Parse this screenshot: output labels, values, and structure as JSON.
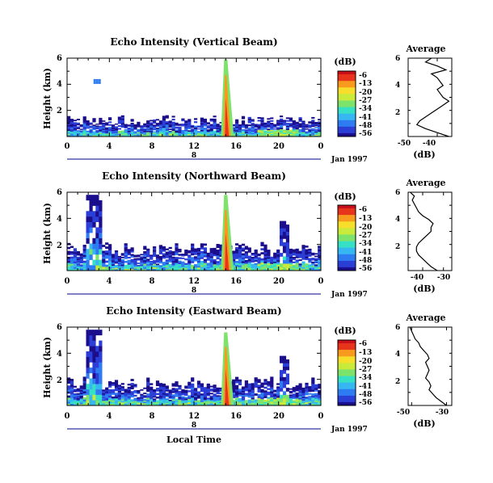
{
  "colors": {
    "colorbar": [
      "#1a0e8c",
      "#2b3ed6",
      "#2f7cf2",
      "#37b7f2",
      "#36e0c4",
      "#7de36a",
      "#c9ea3b",
      "#f7de2a",
      "#f79a1e",
      "#e9351c",
      "#c8101a"
    ],
    "plume": "#e9351c",
    "line": "#000000"
  },
  "chart_data": [
    {
      "type": "heatmap",
      "title": "Echo Intensity (Vertical Beam)",
      "ylabel": "Height (km)",
      "xlabel": "",
      "x_ticks": [
        "0",
        "4",
        "8",
        "12",
        "16",
        "20",
        "0"
      ],
      "y_ticks": [
        "6",
        "4",
        "2"
      ],
      "xlim": [
        0,
        24
      ],
      "ylim": [
        0,
        6
      ],
      "date_marker": "8",
      "date_label": "Jan 1997",
      "colorbar": {
        "label": "(dB)",
        "ticks": [
          "-6",
          "-13",
          "-20",
          "-27",
          "-34",
          "-41",
          "-48",
          "-56"
        ]
      },
      "plume": {
        "time": 15,
        "top_km": 5.9
      },
      "echo_layer_top_km": 1.5,
      "profile": {
        "title": "Average",
        "xlabel": "(dB)",
        "x_ticks": [
          "-50",
          "-40"
        ],
        "y_ticks": [
          "6",
          "4",
          "2"
        ],
        "xlim": [
          -50,
          -35
        ],
        "ylim": [
          0,
          6
        ],
        "height_km": [
          0.0,
          0.3,
          0.6,
          0.9,
          1.2,
          1.5,
          1.8,
          2.1,
          2.4,
          2.7,
          3.0,
          3.3,
          3.6,
          3.9,
          4.2,
          4.5,
          4.8,
          5.1,
          5.4,
          5.7,
          6.0
        ],
        "db": [
          -36,
          -40,
          -44,
          -47,
          -46,
          -44,
          -42,
          -40,
          -38,
          -36,
          -38,
          -39,
          -40,
          -38,
          -39,
          -40,
          -42,
          -37,
          -40,
          -44,
          -42
        ]
      }
    },
    {
      "type": "heatmap",
      "title": "Echo Intensity (Northward Beam)",
      "ylabel": "Height (km)",
      "xlabel": "",
      "x_ticks": [
        "0",
        "4",
        "8",
        "12",
        "16",
        "20",
        "0"
      ],
      "y_ticks": [
        "6",
        "4",
        "2"
      ],
      "xlim": [
        0,
        24
      ],
      "ylim": [
        0,
        6
      ],
      "date_marker": "8",
      "date_label": "Jan 1997",
      "colorbar": {
        "label": "(dB)",
        "ticks": [
          "-6",
          "-13",
          "-20",
          "-27",
          "-34",
          "-41",
          "-48",
          "-56"
        ]
      },
      "plume": {
        "time": 15,
        "top_km": 5.8
      },
      "echo_layer_top_km": 2.0,
      "profile": {
        "title": "Average",
        "xlabel": "(dB)",
        "x_ticks": [
          "-40",
          "-30"
        ],
        "y_ticks": [
          "6",
          "4",
          "2"
        ],
        "xlim": [
          -47,
          -26
        ],
        "ylim": [
          0,
          6
        ],
        "height_km": [
          0.0,
          0.3,
          0.6,
          0.9,
          1.2,
          1.5,
          1.8,
          2.1,
          2.4,
          2.7,
          3.0,
          3.3,
          3.6,
          3.9,
          4.2,
          4.5,
          4.8,
          5.1,
          5.4,
          5.7,
          6.0
        ],
        "db": [
          -33,
          -36,
          -38,
          -40,
          -42,
          -43,
          -43,
          -42,
          -40,
          -38,
          -36,
          -36,
          -35,
          -37,
          -40,
          -42,
          -43,
          -44,
          -45,
          -44,
          -46
        ]
      }
    },
    {
      "type": "heatmap",
      "title": "Echo Intensity (Eastward Beam)",
      "ylabel": "Height (km)",
      "xlabel": "Local Time",
      "x_ticks": [
        "0",
        "4",
        "8",
        "12",
        "16",
        "20",
        "0"
      ],
      "y_ticks": [
        "6",
        "4",
        "2"
      ],
      "xlim": [
        0,
        24
      ],
      "ylim": [
        0,
        6
      ],
      "date_marker": "8",
      "date_label": "Jan 1997",
      "colorbar": {
        "label": "(dB)",
        "ticks": [
          "-6",
          "-13",
          "-20",
          "-27",
          "-34",
          "-41",
          "-48",
          "-56"
        ]
      },
      "plume": {
        "time": 15,
        "top_km": 5.6
      },
      "echo_layer_top_km": 2.0,
      "profile": {
        "title": "Average",
        "xlabel": "(dB)",
        "x_ticks": [
          "-50",
          "-30"
        ],
        "y_ticks": [
          "6",
          "4",
          "2"
        ],
        "xlim": [
          -52,
          -27
        ],
        "ylim": [
          0,
          6
        ],
        "height_km": [
          0.0,
          0.3,
          0.6,
          0.9,
          1.2,
          1.5,
          1.8,
          2.1,
          2.4,
          2.7,
          3.0,
          3.3,
          3.6,
          3.9,
          4.2,
          4.5,
          4.8,
          5.1,
          5.4,
          5.7,
          6.0
        ],
        "db": [
          -30,
          -33,
          -36,
          -38,
          -40,
          -39,
          -40,
          -42,
          -41,
          -40,
          -41,
          -42,
          -40,
          -41,
          -43,
          -45,
          -46,
          -48,
          -49,
          -50,
          -51
        ]
      }
    }
  ]
}
